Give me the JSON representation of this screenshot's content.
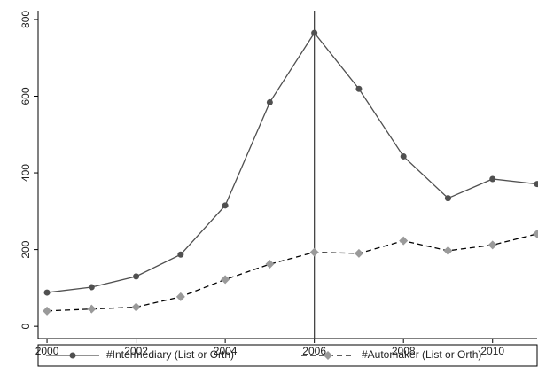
{
  "chart_data": {
    "type": "line",
    "x": [
      2000,
      2001,
      2002,
      2003,
      2004,
      2005,
      2006,
      2007,
      2008,
      2009,
      2010,
      2011
    ],
    "series": [
      {
        "name": "#Intermediary (List or Orth)",
        "color": "#505050",
        "dash": "solid",
        "marker": "circle",
        "values": [
          88,
          102,
          130,
          187,
          315,
          584,
          765,
          619,
          443,
          334,
          384,
          371
        ]
      },
      {
        "name": "#Automaker (List or Orth)",
        "color": "#9a9a9a",
        "dash": "dashed",
        "marker": "diamond",
        "values": [
          40,
          45,
          50,
          77,
          122,
          162,
          193,
          190,
          223,
          197,
          212,
          241
        ]
      }
    ],
    "xlim": [
      1999.8,
      2011
    ],
    "xticks": [
      2000,
      2002,
      2004,
      2006,
      2008,
      2010
    ],
    "ylim": [
      -32,
      823
    ],
    "yticks": [
      0,
      200,
      400,
      600,
      800
    ],
    "vline": 2006,
    "grid": false,
    "legend": "bottom"
  }
}
